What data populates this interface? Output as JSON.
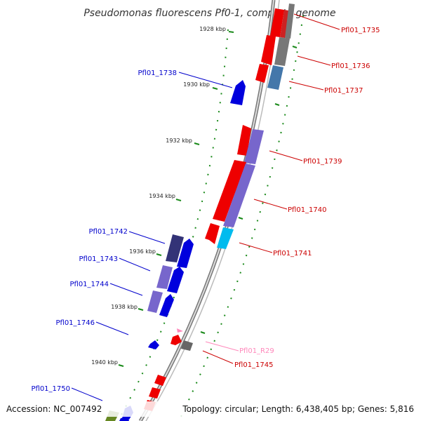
{
  "title": "Pseudomonas fluorescens Pf0-1, complete genome",
  "ticks": [
    "1928 kbp",
    "1930 kbp",
    "1932 kbp",
    "1934 kbp",
    "1936 kbp",
    "1938 kbp",
    "1940 kbp"
  ],
  "genes": {
    "pf1735": "Pfl01_1735",
    "pf1736": "Pfl01_1736",
    "pf1737": "Pfl01_1737",
    "pf1738": "Pfl01_1738",
    "pf1739": "Pfl01_1739",
    "pf1740": "Pfl01_1740",
    "pf1741": "Pfl01_1741",
    "pf1742": "Pfl01_1742",
    "pf1743": "Pfl01_1743",
    "pf1744": "Pfl01_1744",
    "pf1745": "Pfl01_1745",
    "pf1746": "Pfl01_1746",
    "pf1750": "Pfl01_1750",
    "pfR29": "Pfl01_R29"
  },
  "footer": {
    "accession": "Accession: NC_007492",
    "summary": "Topology: circular; Length: 6,438,405 bp; Genes: 5,816"
  },
  "colors": {
    "forward_gene": "#ee0000",
    "reverse_gene": "#0000dd",
    "hypothetical": "#7766cc",
    "backbone": "#888888",
    "tick": "#1a8a1a",
    "rna": "#ff88bb"
  }
}
